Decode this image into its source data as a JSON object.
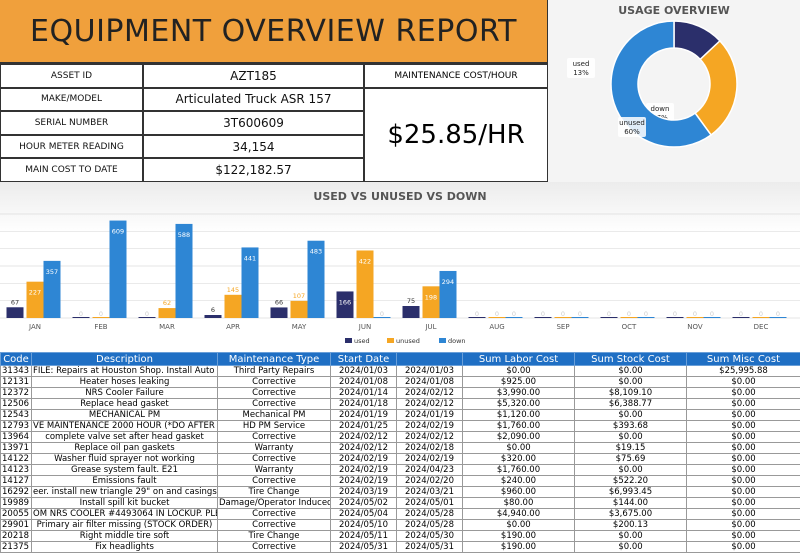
{
  "title": "EQUIPMENT OVERVIEW REPORT",
  "info": [
    {
      "label": "ASSET ID",
      "value": "AZT185"
    },
    {
      "label": "MAKE/MODEL",
      "value": "Articulated Truck ASR  157"
    },
    {
      "label": "SERIAL NUMBER",
      "value": "3T600609"
    },
    {
      "label": "HOUR METER READING",
      "value": "34,154"
    },
    {
      "label": "MAIN COST TO DATE",
      "value": "$122,182.57"
    }
  ],
  "maintenance": {
    "label": "MAINTENANCE COST/HOUR",
    "value": "$25.85/HR"
  },
  "usage": {
    "title": "USAGE OVERVIEW",
    "slices": [
      {
        "name": "used",
        "pct": 13,
        "color": "#2b2f6b"
      },
      {
        "name": "down",
        "pct": 27,
        "color": "#f5a623"
      },
      {
        "name": "unused",
        "pct": 60,
        "color": "#2e86d4"
      }
    ]
  },
  "colors": {
    "used": "#2b2f6b",
    "unused": "#f5a623",
    "down": "#2e86d4",
    "header": "#1f6fc4",
    "title": "#f0a03c"
  },
  "chart_data": {
    "type": "bar",
    "title": "USED VS UNUSED VS DOWN",
    "categories": [
      "JAN",
      "FEB",
      "MAR",
      "APR",
      "MAY",
      "JUN",
      "JUL",
      "AUG",
      "SEP",
      "OCT",
      "NOV",
      "DEC"
    ],
    "series": [
      {
        "name": "used",
        "values": [
          67,
          0,
          0,
          6,
          66,
          166,
          75,
          0,
          0,
          0,
          0,
          0
        ]
      },
      {
        "name": "unused",
        "values": [
          227,
          0,
          62,
          145,
          107,
          422,
          198,
          0,
          0,
          0,
          0,
          0
        ]
      },
      {
        "name": "down",
        "values": [
          357,
          609,
          588,
          441,
          483,
          0,
          294,
          0,
          0,
          0,
          0,
          0
        ]
      }
    ],
    "ylim": [
      0,
      650
    ],
    "grid": true,
    "legend": "bottom"
  },
  "table": {
    "headers": [
      "Code",
      "Description",
      "Maintenance Type",
      "Start Date",
      "",
      "Sum Labor Cost",
      "Sum Stock Cost",
      "Sum Misc Cost"
    ],
    "rows": [
      [
        "31343",
        "FILE: Repairs at Houston Shop. Install Auto Gre",
        "Third Party Repairs",
        "2024/01/03",
        "2024/01/03",
        "$0.00",
        "$0.00",
        "$25,995.88"
      ],
      [
        "12131",
        "Heater hoses leaking",
        "Corrective",
        "2024/01/08",
        "2024/01/08",
        "$925.00",
        "$0.00",
        "$0.00"
      ],
      [
        "12372",
        "NRS Cooler Failure",
        "Corrective",
        "2024/01/14",
        "2024/02/12",
        "$3,990.00",
        "$8,109.10",
        "$0.00"
      ],
      [
        "12506",
        "Replace head gasket",
        "Corrective",
        "2024/01/18",
        "2024/02/12",
        "$5,320.00",
        "$6,388.77",
        "$0.00"
      ],
      [
        "12543",
        "MECHANICAL PM",
        "Mechanical PM",
        "2024/01/19",
        "2024/01/19",
        "$1,120.00",
        "$0.00",
        "$0.00"
      ],
      [
        "12793",
        "VE MAINTENANCE 2000 HOUR (*DO AFTER N",
        "HD PM Service",
        "2024/01/25",
        "2024/02/19",
        "$1,760.00",
        "$393.68",
        "$0.00"
      ],
      [
        "13964",
        "complete valve set after head gasket",
        "Corrective",
        "2024/02/12",
        "2024/02/12",
        "$2,090.00",
        "$0.00",
        "$0.00"
      ],
      [
        "13971",
        "Replace oil pan gaskets",
        "Warranty",
        "2024/02/12",
        "2024/02/18",
        "$0.00",
        "$19.15",
        "$0.00"
      ],
      [
        "14122",
        "Washer fluid sprayer not working",
        "Corrective",
        "2024/02/19",
        "2024/02/19",
        "$320.00",
        "$75.69",
        "$0.00"
      ],
      [
        "14123",
        "Grease system fault. E21",
        "Warranty",
        "2024/02/19",
        "2024/04/23",
        "$1,760.00",
        "$0.00",
        "$0.00"
      ],
      [
        "14127",
        "Emissions fault",
        "Corrective",
        "2024/02/19",
        "2024/02/20",
        "$240.00",
        "$522.20",
        "$0.00"
      ],
      [
        "16292",
        "eer. install new triangle 29\" on and casings of",
        "Tire Change",
        "2024/03/19",
        "2024/03/21",
        "$960.00",
        "$6,993.45",
        "$0.00"
      ],
      [
        "19989",
        "Install spill kit bucket",
        "Damage/Operator Induced",
        "2024/05/02",
        "2024/05/01",
        "$80.00",
        "$144.00",
        "$0.00"
      ],
      [
        "20055",
        "OM NRS COOLER #4493064 IN LOCKUP. PLEAS",
        "Corrective",
        "2024/05/04",
        "2024/05/28",
        "$4,940.00",
        "$3,675.00",
        "$0.00"
      ],
      [
        "29901",
        "Primary air filter missing (STOCK ORDER)",
        "Corrective",
        "2024/05/10",
        "2024/05/28",
        "$0.00",
        "$200.13",
        "$0.00"
      ],
      [
        "20218",
        "Right middle tire soft",
        "Tire Change",
        "2024/05/11",
        "2024/05/30",
        "$190.00",
        "$0.00",
        "$0.00"
      ],
      [
        "21375",
        "Fix headlights",
        "Corrective",
        "2024/05/31",
        "2024/05/31",
        "$190.00",
        "$0.00",
        "$0.00"
      ]
    ]
  }
}
